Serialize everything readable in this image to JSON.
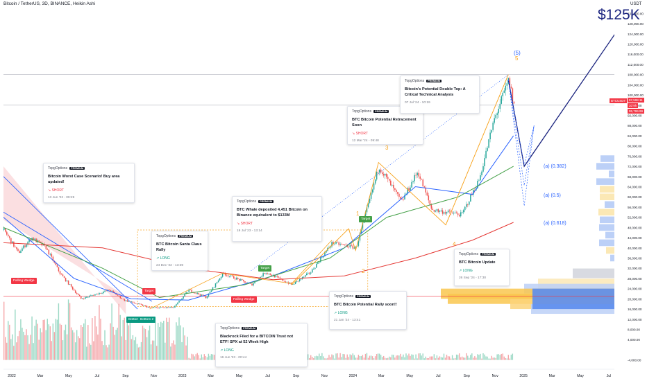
{
  "header": {
    "title": "Bitcoin / TetherUS, 3D, BINANCE, Heikin Ashi",
    "currency": "USDT"
  },
  "target_label": "$125K",
  "colors": {
    "bull": "#26a69a",
    "bear": "#ef5350",
    "accent": "#1a237e",
    "ema_short": "#2962ff",
    "ema_mid": "#43a047",
    "ema_long": "#e53935",
    "fib": "#f7a21b",
    "short": "#f23645",
    "long": "#089981"
  },
  "ideas": [
    {
      "author": "TopgOptions",
      "badge": "PREMIUM",
      "title": "Bitcoin Worst Case Scenario! Buy area updated!",
      "direction": "SHORT",
      "date": "13 Jun '22 - 09:29"
    },
    {
      "author": "TopgOptions",
      "badge": "PREMIUM",
      "title": "BTC Bitcoin Santa Claus Rally",
      "direction": "LONG",
      "date": "24 Dec '22 - 13:39"
    },
    {
      "author": "TopgOptions",
      "badge": "PREMIUM",
      "title": "Blackrock Filed for a BITCOIN Trust not ETF! SPX at 52 Week High",
      "direction": "LONG",
      "date": "16 Jun '23 - 00:44"
    },
    {
      "author": "TopgOptions",
      "badge": "PREMIUM",
      "title": "BTC Whale deposited 4,451 Bitcoin on Binance equivalent to $133M",
      "direction": "SHORT",
      "date": "19 Jul '23 - 13:14"
    },
    {
      "author": "TopgOptions",
      "badge": "PREMIUM",
      "title": "BTC Bitcoin Potential Rally soon!!",
      "direction": "LONG",
      "date": "21 Jan '24 - 13:41"
    },
    {
      "author": "TopgOptions",
      "badge": "PREMIUM",
      "title": "BTC Bitcoin Potential Retracement Soon",
      "direction": "SHORT",
      "date": "12 Mar '24 - 09:48"
    },
    {
      "author": "TopgOptions",
      "badge": "PREMIUM",
      "title": "Bitcoin's Potential Double Top: A Critical Technical Analysis",
      "direction": "",
      "date": "07 Jul '24 - 10:19"
    },
    {
      "author": "TopgOptions",
      "badge": "PREMIUM",
      "title": "BTC Bitcoin Update",
      "direction": "LONG",
      "date": "26 Sep '24 - 17:30"
    }
  ],
  "pattern_tags": [
    "Falling Wedge",
    "Target",
    "Bottom",
    "Bottom 2",
    "Target",
    "Falling Wedge",
    "Target"
  ],
  "wave_labels": [
    "(5)",
    "5",
    "3",
    "1",
    "2",
    "4"
  ],
  "fib_labels": [
    "(a) (0.382)",
    "(a) (0.5)",
    "(a) (0.618)"
  ],
  "price_tags": {
    "symbol": "BTCUSDT",
    "price": "97,598.11",
    "timer": "2d 9h",
    "low": "95,799.99"
  },
  "chart_data": {
    "type": "candlestick",
    "title": "",
    "x_ticks": [
      "2022",
      "Mar",
      "May",
      "Jul",
      "Sep",
      "Nov",
      "2023",
      "Mar",
      "May",
      "Jul",
      "Sep",
      "Nov",
      "2024",
      "Mar",
      "May",
      "Jul",
      "Sep",
      "Nov",
      "2025",
      "Mar",
      "May",
      "Jul"
    ],
    "y_ticks": [
      132000,
      128000,
      124000,
      120000,
      116000,
      112000,
      108000,
      104000,
      100000,
      96000,
      92000,
      88000,
      84000,
      80000,
      76000,
      72000,
      68000,
      64000,
      60000,
      56000,
      52000,
      48000,
      44000,
      40000,
      36000,
      32000,
      28000,
      24000,
      20000,
      16000,
      12000,
      8000,
      4000,
      -4000
    ],
    "y_tick_labels": [
      "132,000.00",
      "128,000.00",
      "124,000.00",
      "120,000.00",
      "116,000.00",
      "112,000.00",
      "108,000.00",
      "104,000.00",
      "100,000.00",
      "96,000.00",
      "92,000.00",
      "88,000.00",
      "84,000.00",
      "80,000.00",
      "76,000.00",
      "72,000.00",
      "68,000.00",
      "64,000.00",
      "60,000.00",
      "56,000.00",
      "52,000.00",
      "48,000.00",
      "44,000.00",
      "40,000.00",
      "36,000.00",
      "32,000.00",
      "28,000.00",
      "24,000.00",
      "20,000.00",
      "16,000.00",
      "12,000.00",
      "8,000.00",
      "4,000.00",
      "-4,000.00"
    ],
    "ylim": [
      -6000,
      134000
    ],
    "time_range": [
      "2022-01-01",
      "2025-08-01"
    ],
    "close_keypoints": [
      {
        "date": "2022-01-01",
        "price": 47000
      },
      {
        "date": "2022-02-01",
        "price": 38000
      },
      {
        "date": "2022-03-01",
        "price": 44000
      },
      {
        "date": "2022-04-01",
        "price": 40000
      },
      {
        "date": "2022-05-01",
        "price": 30000
      },
      {
        "date": "2022-06-15",
        "price": 20000
      },
      {
        "date": "2022-08-15",
        "price": 23500
      },
      {
        "date": "2022-09-15",
        "price": 19500
      },
      {
        "date": "2022-11-10",
        "price": 16500
      },
      {
        "date": "2022-12-31",
        "price": 16600
      },
      {
        "date": "2023-02-01",
        "price": 23500
      },
      {
        "date": "2023-03-10",
        "price": 20500
      },
      {
        "date": "2023-04-15",
        "price": 30000
      },
      {
        "date": "2023-06-15",
        "price": 25500
      },
      {
        "date": "2023-07-15",
        "price": 30500
      },
      {
        "date": "2023-09-10",
        "price": 25500
      },
      {
        "date": "2023-10-20",
        "price": 30500
      },
      {
        "date": "2023-12-05",
        "price": 42000
      },
      {
        "date": "2024-01-25",
        "price": 40000
      },
      {
        "date": "2024-03-14",
        "price": 72000
      },
      {
        "date": "2024-05-01",
        "price": 58000
      },
      {
        "date": "2024-06-05",
        "price": 70000
      },
      {
        "date": "2024-07-05",
        "price": 55000
      },
      {
        "date": "2024-08-05",
        "price": 54000
      },
      {
        "date": "2024-09-07",
        "price": 53000
      },
      {
        "date": "2024-10-15",
        "price": 67000
      },
      {
        "date": "2024-11-15",
        "price": 90000
      },
      {
        "date": "2024-12-17",
        "price": 106000
      },
      {
        "date": "2024-12-28",
        "price": 95800
      }
    ],
    "moving_averages": [
      {
        "name": "",
        "color": "#2962ff",
        "points": [
          {
            "date": "2022-01-01",
            "price": 52000
          },
          {
            "date": "2022-06-01",
            "price": 28000
          },
          {
            "date": "2022-10-01",
            "price": 20000
          },
          {
            "date": "2023-02-01",
            "price": 19500
          },
          {
            "date": "2023-08-01",
            "price": 29000
          },
          {
            "date": "2024-01-01",
            "price": 40000
          },
          {
            "date": "2024-06-01",
            "price": 64000
          },
          {
            "date": "2024-10-01",
            "price": 61000
          },
          {
            "date": "2024-12-28",
            "price": 84000
          }
        ]
      },
      {
        "name": "",
        "color": "#43a047",
        "points": [
          {
            "date": "2022-01-01",
            "price": 48000
          },
          {
            "date": "2022-08-01",
            "price": 32000
          },
          {
            "date": "2022-12-01",
            "price": 20500
          },
          {
            "date": "2023-06-01",
            "price": 25500
          },
          {
            "date": "2023-12-01",
            "price": 36000
          },
          {
            "date": "2024-04-01",
            "price": 52000
          },
          {
            "date": "2024-09-01",
            "price": 60000
          },
          {
            "date": "2024-12-28",
            "price": 72000
          }
        ]
      },
      {
        "name": "",
        "color": "#e53935",
        "points": [
          {
            "date": "2022-01-01",
            "price": 42000
          },
          {
            "date": "2022-08-01",
            "price": 40000
          },
          {
            "date": "2023-02-01",
            "price": 32000
          },
          {
            "date": "2023-08-01",
            "price": 27500
          },
          {
            "date": "2024-01-01",
            "price": 29000
          },
          {
            "date": "2024-06-01",
            "price": 36000
          },
          {
            "date": "2024-10-01",
            "price": 43000
          },
          {
            "date": "2024-12-28",
            "price": 50000
          }
        ]
      }
    ],
    "projection": [
      {
        "date": "2024-12-17",
        "price": 106000
      },
      {
        "date": "2025-01-20",
        "price": 72000
      },
      {
        "date": "2025-08-10",
        "price": 126000
      }
    ],
    "fib_levels": [
      {
        "label": "(a) (0.382)",
        "price": 72500
      },
      {
        "label": "(a) (0.5)",
        "price": 64500
      },
      {
        "label": "(a) (0.618)",
        "price": 56500
      }
    ],
    "horizontal_levels": [
      108000,
      96000,
      21000
    ],
    "grid": false,
    "legend": "none"
  }
}
